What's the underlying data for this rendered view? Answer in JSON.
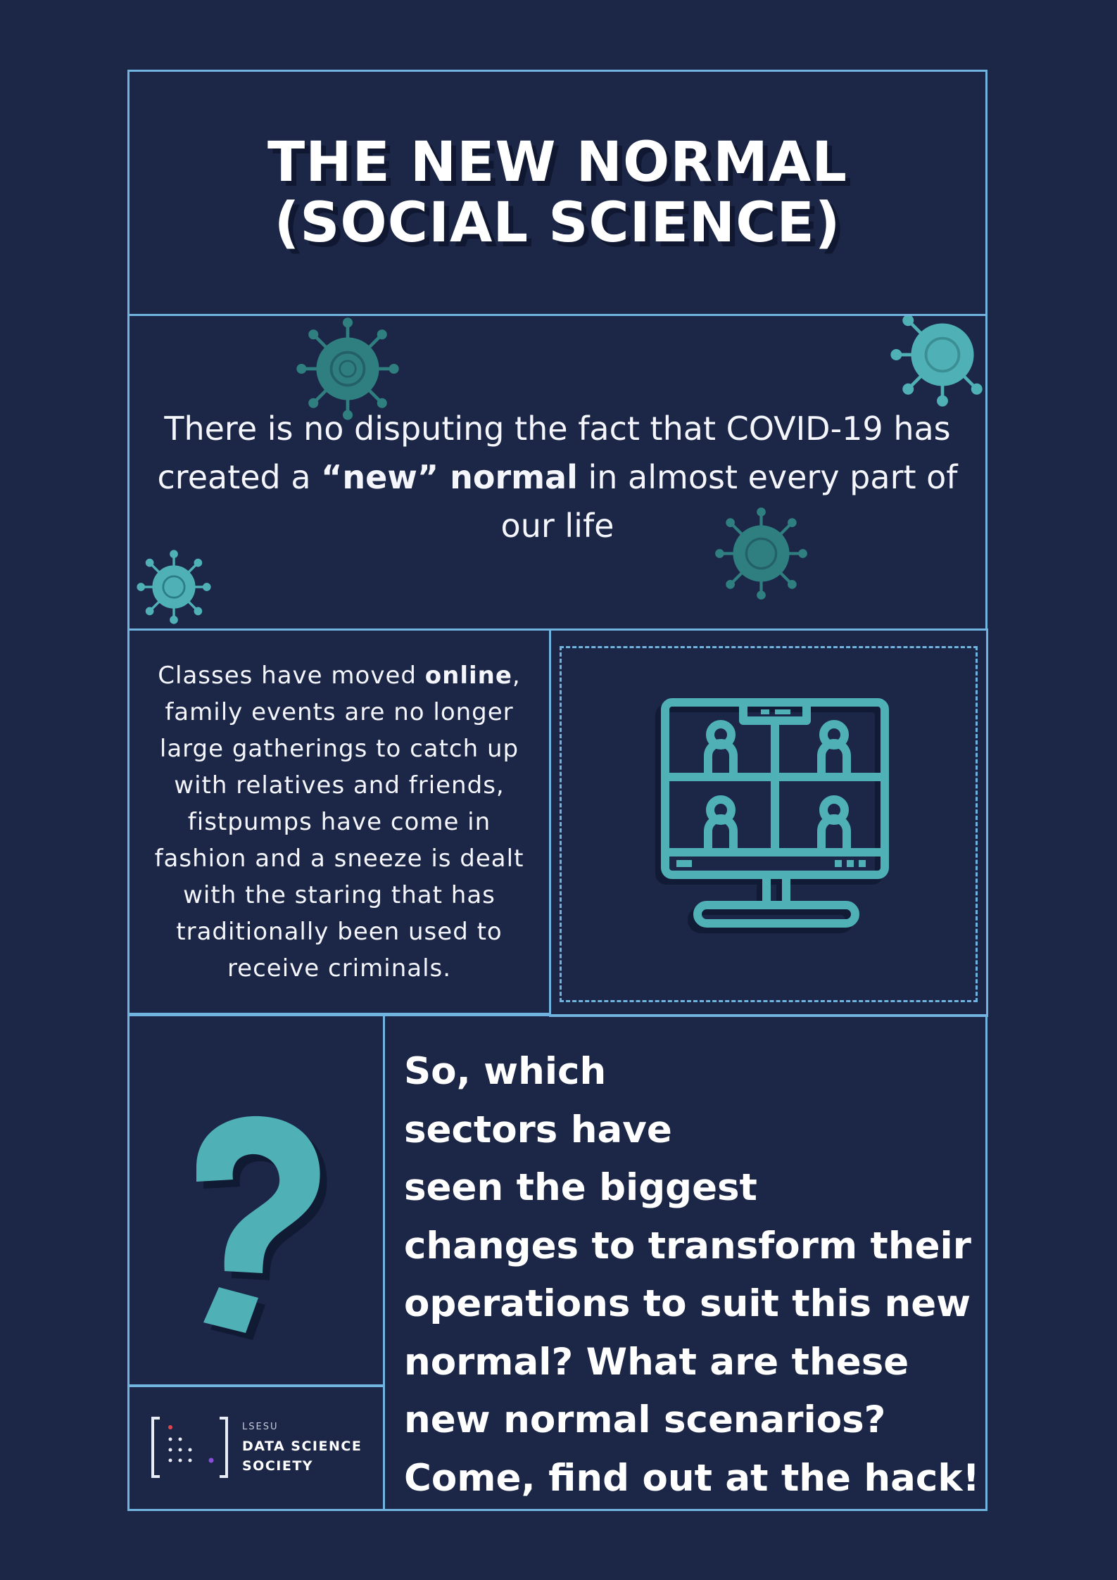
{
  "title": {
    "line1": "THE NEW NORMAL",
    "line2": "(SOCIAL SCIENCE)"
  },
  "intro": {
    "part1": "There is no disputing the fact that COVID-19 has created a ",
    "emphasis": "“new” normal",
    "part2": " in almost every part of our life"
  },
  "classes": {
    "part1": "Classes have moved ",
    "emphasis": "online",
    "part2": ", family events are no longer large gatherings to catch up with relatives and friends, fistpumps have come in fashion and a sneeze is dealt with the staring that has traditionally been used to receive criminals."
  },
  "question": {
    "lines": [
      "So, which",
      "sectors have",
      "seen the biggest",
      "changes to transform their",
      "operations to suit this new",
      "normal? What are these",
      "new normal scenarios?",
      "Come, find out at the hack!"
    ]
  },
  "logo": {
    "small": "LSESU",
    "line1": "DATA SCIENCE",
    "line2": "SOCIETY"
  },
  "icons": [
    "virus-icon",
    "video-conference-monitor-icon",
    "question-mark-icon",
    "data-science-society-logo"
  ],
  "colors": {
    "background": "#1c2748",
    "border": "#6fb3de",
    "accent": "#4fb0b5",
    "text": "#ffffff"
  }
}
